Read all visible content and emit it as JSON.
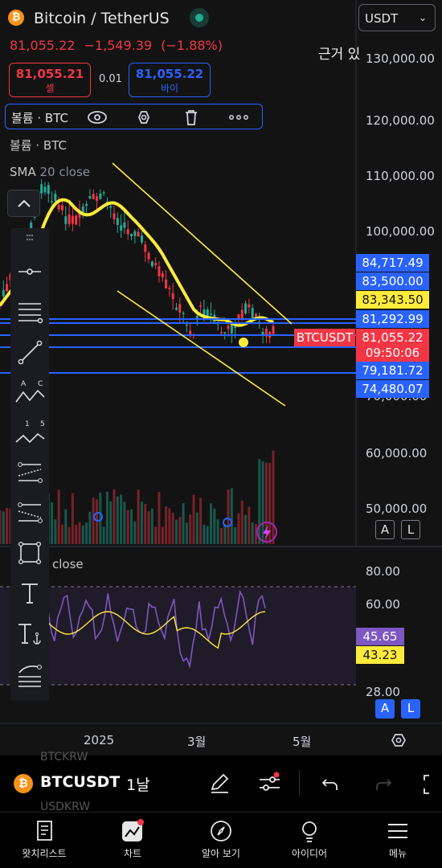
{
  "header": {
    "coin_glyph": "₿",
    "title": "Bitcoin / TetherUS",
    "price": "81,055.22",
    "change": "−1,549.39",
    "change_pct": "(−1.88%)",
    "quote_select": "USDT",
    "note": "근거 있",
    "live_indicator_color": "#22ab94"
  },
  "trade": {
    "sell_price": "81,055.21",
    "sell_label": "셀",
    "spread": "0.01",
    "buy_price": "81,055.22",
    "buy_label": "바이"
  },
  "volume_toolbar": {
    "label": "볼륨 · BTC",
    "icons": [
      "eye-icon",
      "settings-hex-icon",
      "trash-icon",
      "more-icon"
    ]
  },
  "legend": {
    "volume_label": "볼륨 · BTC",
    "sma_name": "SMA",
    "sma_params": "20 close",
    "rsi_params": "close"
  },
  "price_axis": {
    "labels": [
      "130,000.00",
      "120,000.00",
      "110,000.00",
      "100,000.00",
      "60,000.00",
      "50,000.00"
    ],
    "partial_label": "70,000.00"
  },
  "price_tags": [
    {
      "value": "84,717.49",
      "bg": "#2962ff",
      "fg": "#ffffff"
    },
    {
      "value": "83,500.00",
      "bg": "#2962ff",
      "fg": "#ffffff"
    },
    {
      "value": "83,343.50",
      "bg": "#ffeb3b",
      "fg": "#131313"
    },
    {
      "value": "81,292.99",
      "bg": "#2962ff",
      "fg": "#ffffff"
    },
    {
      "value": "81,055.22",
      "bg": "#f23645",
      "fg": "#ffffff"
    },
    {
      "value": "09:50:06",
      "bg": "#f23645",
      "fg": "#ffffff"
    },
    {
      "value": "79,181.72",
      "bg": "#2962ff",
      "fg": "#ffffff"
    },
    {
      "value": "74,480.07",
      "bg": "#2962ff",
      "fg": "#ffffff"
    }
  ],
  "symbol_tag": "BTCUSDT",
  "rsi_axis": {
    "labels": [
      "80.00",
      "60.00"
    ],
    "partial_label": "28.00",
    "tag_rsi": "45.65",
    "tag_ma": "43.23",
    "rsi_color": "#7e57c2",
    "ma_color": "#ffeb3b"
  },
  "scale_buttons": {
    "auto": "A",
    "log": "L"
  },
  "time_axis": [
    "2025",
    "3월",
    "5월"
  ],
  "bottom_bar": {
    "symbol": "BTCUSDT",
    "interval": "1날",
    "ghost_top": "BTCKRW",
    "ghost_bottom": "USDKRW"
  },
  "nav": [
    {
      "label": "왓치리스트",
      "icon": "watchlist-icon"
    },
    {
      "label": "차트",
      "icon": "chart-icon"
    },
    {
      "label": "알아 보기",
      "icon": "explore-icon"
    },
    {
      "label": "아이디어",
      "icon": "ideas-icon"
    },
    {
      "label": "메뉴",
      "icon": "menu-icon"
    }
  ],
  "colors": {
    "up": "#22ab94",
    "down": "#f23645",
    "accent": "#2962ff",
    "sma": "#ffeb3b",
    "channel": "#ffeb3b"
  }
}
